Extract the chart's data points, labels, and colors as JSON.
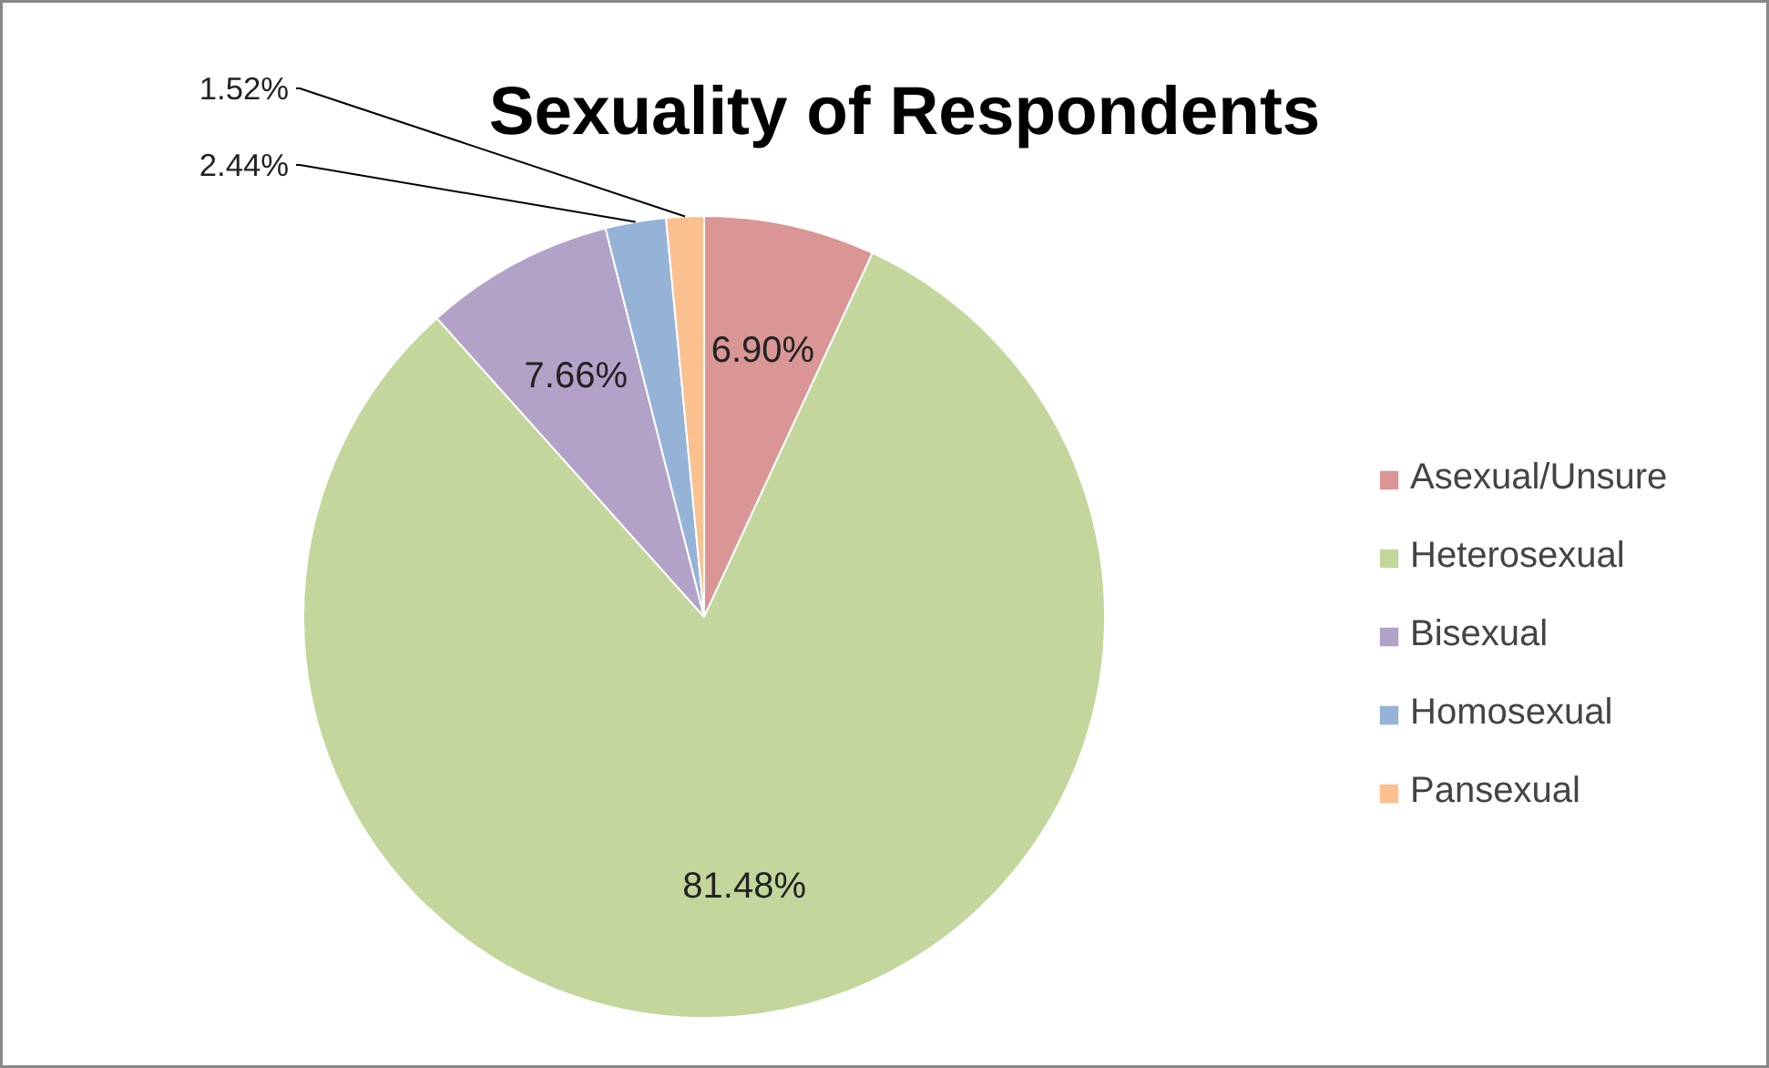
{
  "chart_data": {
    "type": "pie",
    "title": "Sexuality of Respondents",
    "categories": [
      "Asexual/Unsure",
      "Heterosexual",
      "Bisexual",
      "Homosexual",
      "Pansexual"
    ],
    "values": [
      6.9,
      81.48,
      7.66,
      2.44,
      1.52
    ],
    "value_labels": [
      "6.90%",
      "81.48%",
      "7.66%",
      "2.44%",
      "1.52%"
    ],
    "colors": [
      "#d99694",
      "#c3d69b",
      "#b3a2c7",
      "#95b3d7",
      "#fac090"
    ],
    "legend": "right"
  }
}
